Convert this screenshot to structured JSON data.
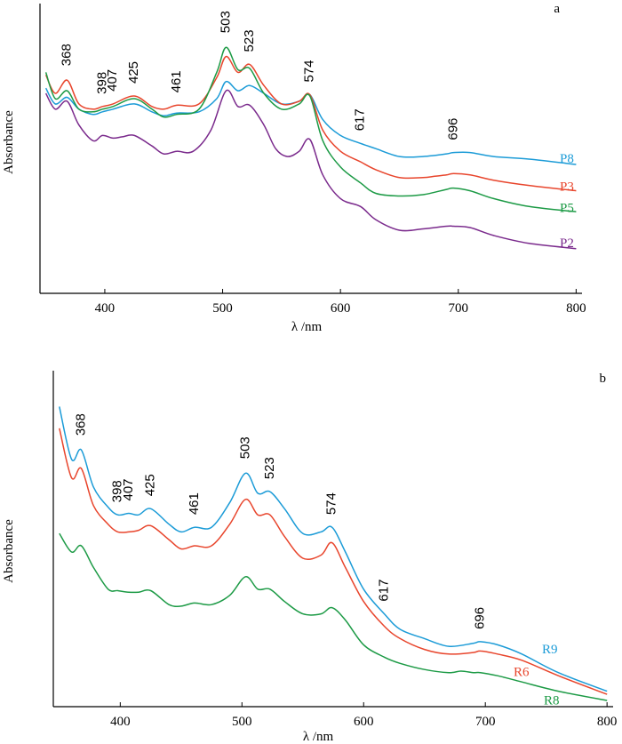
{
  "chart_data": [
    {
      "type": "line",
      "panel": "a",
      "xlabel": "λ /nm",
      "ylabel": "Absorbance",
      "xlim": [
        345,
        805
      ],
      "ylim": [
        0,
        1
      ],
      "x_ticks": [
        400,
        500,
        600,
        700,
        800
      ],
      "y_ticks": [],
      "grid": false,
      "peaks": [
        368,
        398,
        407,
        425,
        461,
        503,
        523,
        574,
        617,
        696
      ],
      "series": [
        {
          "name": "P8",
          "color": "#1b9bd7",
          "points": [
            [
              350,
              0.78
            ],
            [
              358,
              0.72
            ],
            [
              368,
              0.745
            ],
            [
              378,
              0.7
            ],
            [
              390,
              0.68
            ],
            [
              398,
              0.69
            ],
            [
              407,
              0.7
            ],
            [
              425,
              0.72
            ],
            [
              440,
              0.69
            ],
            [
              450,
              0.675
            ],
            [
              461,
              0.685
            ],
            [
              480,
              0.69
            ],
            [
              495,
              0.74
            ],
            [
              503,
              0.805
            ],
            [
              513,
              0.77
            ],
            [
              523,
              0.79
            ],
            [
              535,
              0.76
            ],
            [
              550,
              0.72
            ],
            [
              565,
              0.73
            ],
            [
              574,
              0.755
            ],
            [
              585,
              0.66
            ],
            [
              600,
              0.6
            ],
            [
              617,
              0.57
            ],
            [
              630,
              0.55
            ],
            [
              650,
              0.52
            ],
            [
              670,
              0.52
            ],
            [
              690,
              0.53
            ],
            [
              696,
              0.535
            ],
            [
              710,
              0.535
            ],
            [
              730,
              0.52
            ],
            [
              760,
              0.51
            ],
            [
              800,
              0.49
            ]
          ]
        },
        {
          "name": "P3",
          "color": "#e8452c",
          "points": [
            [
              350,
              0.83
            ],
            [
              358,
              0.76
            ],
            [
              368,
              0.81
            ],
            [
              378,
              0.72
            ],
            [
              390,
              0.7
            ],
            [
              398,
              0.71
            ],
            [
              407,
              0.72
            ],
            [
              425,
              0.75
            ],
            [
              440,
              0.71
            ],
            [
              450,
              0.7
            ],
            [
              461,
              0.715
            ],
            [
              480,
              0.72
            ],
            [
              495,
              0.82
            ],
            [
              503,
              0.9
            ],
            [
              513,
              0.84
            ],
            [
              523,
              0.87
            ],
            [
              535,
              0.79
            ],
            [
              550,
              0.72
            ],
            [
              565,
              0.73
            ],
            [
              574,
              0.755
            ],
            [
              585,
              0.62
            ],
            [
              600,
              0.54
            ],
            [
              617,
              0.5
            ],
            [
              630,
              0.47
            ],
            [
              650,
              0.44
            ],
            [
              670,
              0.44
            ],
            [
              680,
              0.445
            ],
            [
              690,
              0.45
            ],
            [
              696,
              0.455
            ],
            [
              710,
              0.45
            ],
            [
              730,
              0.43
            ],
            [
              760,
              0.41
            ],
            [
              800,
              0.39
            ]
          ]
        },
        {
          "name": "P5",
          "color": "#1c9a45",
          "points": [
            [
              350,
              0.84
            ],
            [
              358,
              0.74
            ],
            [
              368,
              0.77
            ],
            [
              378,
              0.7
            ],
            [
              390,
              0.69
            ],
            [
              398,
              0.7
            ],
            [
              407,
              0.71
            ],
            [
              425,
              0.74
            ],
            [
              440,
              0.7
            ],
            [
              450,
              0.67
            ],
            [
              461,
              0.68
            ],
            [
              480,
              0.7
            ],
            [
              495,
              0.84
            ],
            [
              503,
              0.935
            ],
            [
              513,
              0.85
            ],
            [
              523,
              0.855
            ],
            [
              535,
              0.76
            ],
            [
              550,
              0.7
            ],
            [
              565,
              0.72
            ],
            [
              574,
              0.75
            ],
            [
              585,
              0.58
            ],
            [
              600,
              0.48
            ],
            [
              617,
              0.42
            ],
            [
              630,
              0.38
            ],
            [
              650,
              0.37
            ],
            [
              670,
              0.375
            ],
            [
              690,
              0.395
            ],
            [
              696,
              0.4
            ],
            [
              710,
              0.39
            ],
            [
              730,
              0.36
            ],
            [
              760,
              0.33
            ],
            [
              800,
              0.31
            ]
          ]
        },
        {
          "name": "P2",
          "color": "#7a2a8c",
          "points": [
            [
              350,
              0.76
            ],
            [
              358,
              0.7
            ],
            [
              368,
              0.73
            ],
            [
              378,
              0.64
            ],
            [
              390,
              0.58
            ],
            [
              398,
              0.6
            ],
            [
              407,
              0.59
            ],
            [
              415,
              0.595
            ],
            [
              425,
              0.6
            ],
            [
              440,
              0.56
            ],
            [
              450,
              0.53
            ],
            [
              461,
              0.54
            ],
            [
              475,
              0.54
            ],
            [
              490,
              0.62
            ],
            [
              503,
              0.77
            ],
            [
              513,
              0.71
            ],
            [
              523,
              0.715
            ],
            [
              535,
              0.64
            ],
            [
              545,
              0.55
            ],
            [
              555,
              0.52
            ],
            [
              565,
              0.54
            ],
            [
              574,
              0.585
            ],
            [
              585,
              0.45
            ],
            [
              600,
              0.36
            ],
            [
              617,
              0.33
            ],
            [
              630,
              0.28
            ],
            [
              650,
              0.24
            ],
            [
              670,
              0.245
            ],
            [
              690,
              0.255
            ],
            [
              696,
              0.255
            ],
            [
              710,
              0.25
            ],
            [
              730,
              0.22
            ],
            [
              760,
              0.19
            ],
            [
              800,
              0.17
            ]
          ]
        }
      ]
    },
    {
      "type": "line",
      "panel": "b",
      "xlabel": "λ /nm",
      "ylabel": "Absorbance",
      "xlim": [
        345,
        805
      ],
      "ylim": [
        0,
        1
      ],
      "x_ticks": [
        400,
        500,
        600,
        700,
        800
      ],
      "y_ticks": [],
      "grid": false,
      "peaks": [
        368,
        398,
        407,
        425,
        461,
        503,
        523,
        574,
        617,
        696
      ],
      "series": [
        {
          "name": "R9",
          "color": "#1b9bd7",
          "points": [
            [
              350,
              0.97
            ],
            [
              360,
              0.8
            ],
            [
              368,
              0.83
            ],
            [
              378,
              0.71
            ],
            [
              390,
              0.645
            ],
            [
              398,
              0.62
            ],
            [
              407,
              0.625
            ],
            [
              415,
              0.62
            ],
            [
              425,
              0.64
            ],
            [
              440,
              0.59
            ],
            [
              450,
              0.565
            ],
            [
              461,
              0.58
            ],
            [
              475,
              0.58
            ],
            [
              490,
              0.66
            ],
            [
              503,
              0.755
            ],
            [
              513,
              0.69
            ],
            [
              523,
              0.695
            ],
            [
              535,
              0.64
            ],
            [
              550,
              0.56
            ],
            [
              565,
              0.565
            ],
            [
              574,
              0.58
            ],
            [
              585,
              0.5
            ],
            [
              600,
              0.38
            ],
            [
              617,
              0.3
            ],
            [
              630,
              0.25
            ],
            [
              650,
              0.22
            ],
            [
              670,
              0.195
            ],
            [
              690,
              0.205
            ],
            [
              696,
              0.21
            ],
            [
              710,
              0.2
            ],
            [
              730,
              0.17
            ],
            [
              760,
              0.11
            ],
            [
              800,
              0.05
            ]
          ]
        },
        {
          "name": "R6",
          "color": "#e8452c",
          "points": [
            [
              350,
              0.9
            ],
            [
              360,
              0.74
            ],
            [
              368,
              0.77
            ],
            [
              378,
              0.65
            ],
            [
              390,
              0.59
            ],
            [
              398,
              0.565
            ],
            [
              407,
              0.565
            ],
            [
              415,
              0.57
            ],
            [
              425,
              0.585
            ],
            [
              440,
              0.54
            ],
            [
              450,
              0.51
            ],
            [
              461,
              0.52
            ],
            [
              475,
              0.52
            ],
            [
              490,
              0.59
            ],
            [
              503,
              0.67
            ],
            [
              513,
              0.62
            ],
            [
              523,
              0.62
            ],
            [
              535,
              0.55
            ],
            [
              550,
              0.48
            ],
            [
              565,
              0.49
            ],
            [
              574,
              0.53
            ],
            [
              585,
              0.45
            ],
            [
              600,
              0.34
            ],
            [
              617,
              0.26
            ],
            [
              630,
              0.22
            ],
            [
              650,
              0.185
            ],
            [
              670,
              0.17
            ],
            [
              690,
              0.175
            ],
            [
              696,
              0.18
            ],
            [
              710,
              0.17
            ],
            [
              730,
              0.15
            ],
            [
              760,
              0.1
            ],
            [
              800,
              0.04
            ]
          ]
        },
        {
          "name": "R8",
          "color": "#1c9a45",
          "points": [
            [
              350,
              0.56
            ],
            [
              360,
              0.5
            ],
            [
              368,
              0.52
            ],
            [
              378,
              0.45
            ],
            [
              390,
              0.38
            ],
            [
              398,
              0.375
            ],
            [
              407,
              0.37
            ],
            [
              415,
              0.37
            ],
            [
              425,
              0.375
            ],
            [
              440,
              0.33
            ],
            [
              450,
              0.325
            ],
            [
              461,
              0.335
            ],
            [
              475,
              0.33
            ],
            [
              490,
              0.36
            ],
            [
              503,
              0.42
            ],
            [
              513,
              0.38
            ],
            [
              523,
              0.38
            ],
            [
              535,
              0.34
            ],
            [
              550,
              0.3
            ],
            [
              565,
              0.3
            ],
            [
              574,
              0.32
            ],
            [
              585,
              0.28
            ],
            [
              600,
              0.2
            ],
            [
              617,
              0.16
            ],
            [
              630,
              0.14
            ],
            [
              650,
              0.12
            ],
            [
              670,
              0.11
            ],
            [
              680,
              0.115
            ],
            [
              690,
              0.11
            ],
            [
              696,
              0.11
            ],
            [
              710,
              0.1
            ],
            [
              730,
              0.08
            ],
            [
              760,
              0.05
            ],
            [
              800,
              0.02
            ]
          ]
        }
      ]
    }
  ]
}
